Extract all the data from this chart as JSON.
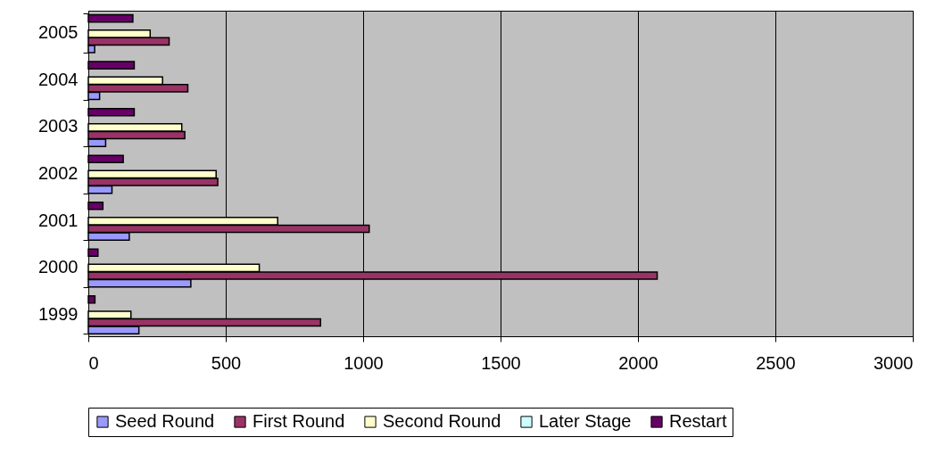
{
  "chart_data": {
    "type": "bar",
    "orientation": "horizontal",
    "categories": [
      "2005",
      "2004",
      "2003",
      "2002",
      "2001",
      "2000",
      "1999"
    ],
    "series": [
      {
        "name": "Seed Round",
        "color": "#9999ff",
        "values": [
          23,
          41,
          63,
          86,
          149,
          373,
          184
        ]
      },
      {
        "name": "First Round",
        "color": "#993366",
        "values": [
          294,
          362,
          351,
          471,
          1022,
          2070,
          845
        ]
      },
      {
        "name": "Second Round",
        "color": "#ffffcc",
        "values": [
          225,
          270,
          340,
          465,
          689,
          622,
          155
        ]
      },
      {
        "name": "Later Stage",
        "color": "#ccffff",
        "values": [
          0,
          0,
          0,
          0,
          0,
          0,
          0
        ]
      },
      {
        "name": "Restart",
        "color": "#660066",
        "values": [
          162,
          167,
          167,
          127,
          53,
          35,
          24
        ]
      }
    ],
    "xlim": [
      0,
      3000
    ],
    "xticks": [
      0,
      500,
      1000,
      1500,
      2000,
      2500,
      3000
    ],
    "grid": "x",
    "legend": "bottom"
  }
}
